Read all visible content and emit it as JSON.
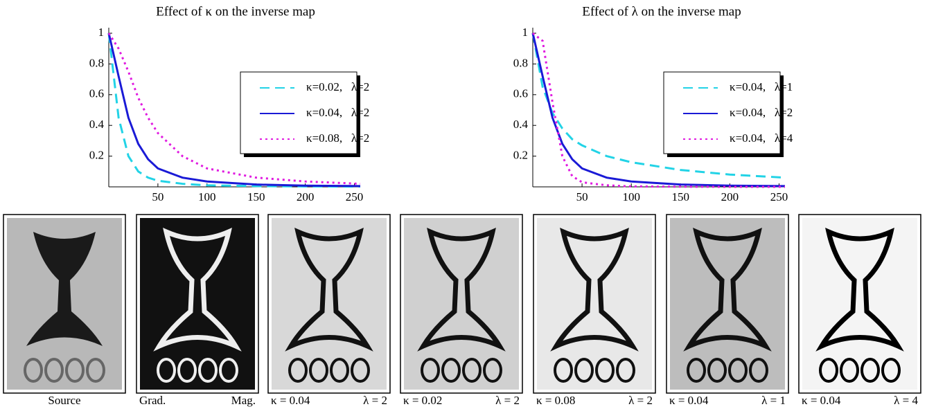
{
  "chart_data": [
    {
      "type": "line",
      "title": "Effect of κ on the inverse map",
      "x": [
        0,
        10,
        20,
        30,
        40,
        50,
        75,
        100,
        150,
        200,
        256
      ],
      "xlim": [
        0,
        256
      ],
      "xticks": [
        50,
        100,
        150,
        200,
        250
      ],
      "ylim": [
        0,
        1
      ],
      "yticks": [
        0.2,
        0.4,
        0.6,
        0.8,
        1
      ],
      "series": [
        {
          "name": "κ=0.02,   λ=2",
          "color": "#22d3e6",
          "style": "dashed",
          "values": [
            1,
            0.45,
            0.2,
            0.1,
            0.06,
            0.04,
            0.02,
            0.01,
            0.005,
            0.003,
            0.002
          ]
        },
        {
          "name": "κ=0.04,   λ=2",
          "color": "#1a1ad6",
          "style": "solid",
          "values": [
            1,
            0.72,
            0.45,
            0.28,
            0.18,
            0.12,
            0.06,
            0.035,
            0.015,
            0.008,
            0.005
          ]
        },
        {
          "name": "κ=0.08,   λ=2",
          "color": "#e01ae0",
          "style": "dotted",
          "values": [
            1,
            0.9,
            0.75,
            0.58,
            0.45,
            0.35,
            0.2,
            0.12,
            0.06,
            0.035,
            0.02
          ]
        }
      ]
    },
    {
      "type": "line",
      "title": "Effect of λ on the inverse map",
      "x": [
        0,
        10,
        20,
        30,
        40,
        50,
        75,
        100,
        150,
        200,
        256
      ],
      "xlim": [
        0,
        256
      ],
      "xticks": [
        50,
        100,
        150,
        200,
        250
      ],
      "ylim": [
        0,
        1
      ],
      "yticks": [
        0.2,
        0.4,
        0.6,
        0.8,
        1
      ],
      "series": [
        {
          "name": "κ=0.04,   λ=1",
          "color": "#22d3e6",
          "style": "dashed",
          "values": [
            1,
            0.65,
            0.48,
            0.38,
            0.31,
            0.27,
            0.2,
            0.16,
            0.11,
            0.08,
            0.06
          ]
        },
        {
          "name": "κ=0.04,   λ=2",
          "color": "#1a1ad6",
          "style": "solid",
          "values": [
            1,
            0.72,
            0.45,
            0.28,
            0.18,
            0.12,
            0.06,
            0.035,
            0.015,
            0.008,
            0.005
          ]
        },
        {
          "name": "κ=0.04,   λ=4",
          "color": "#e01ae0",
          "style": "dotted",
          "values": [
            1,
            0.95,
            0.55,
            0.2,
            0.07,
            0.03,
            0.01,
            0.003,
            0.001,
            0,
            0
          ]
        }
      ]
    }
  ],
  "panels": [
    {
      "captions": [
        "Source"
      ]
    },
    {
      "captions": [
        "Grad.",
        "Mag."
      ]
    },
    {
      "captions": [
        "κ = 0.04",
        "λ = 2"
      ]
    },
    {
      "captions": [
        "κ = 0.02",
        "λ = 2"
      ]
    },
    {
      "captions": [
        "κ = 0.08",
        "λ = 2"
      ]
    },
    {
      "captions": [
        "κ = 0.04",
        "λ = 1"
      ]
    },
    {
      "captions": [
        "κ = 0.04",
        "λ = 4"
      ]
    }
  ]
}
